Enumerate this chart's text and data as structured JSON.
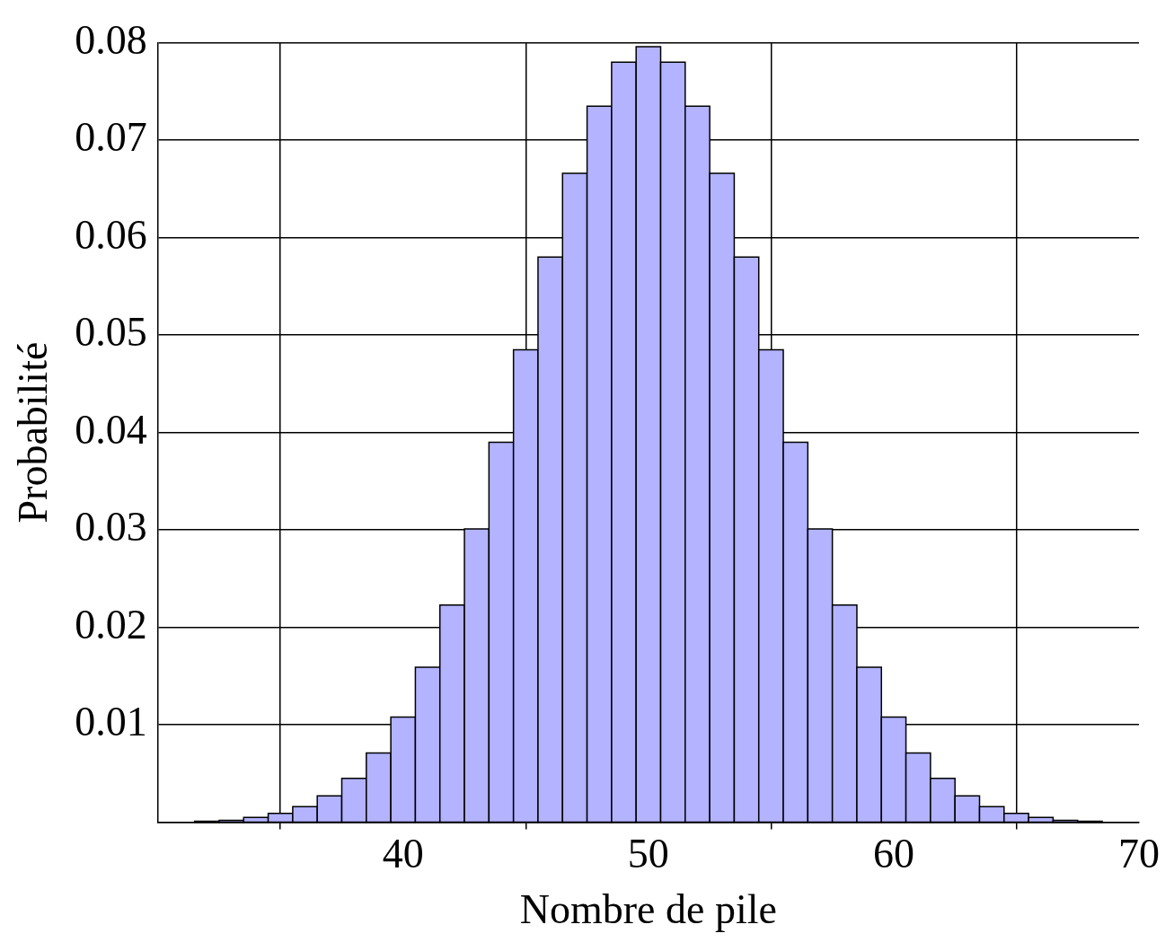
{
  "chart_data": {
    "type": "histogram",
    "xlabel": "Nombre de pile",
    "ylabel": "Probabilité",
    "bins": [
      31.5,
      32.5,
      33.5,
      34.5,
      35.5,
      36.5,
      37.5,
      38.5,
      39.5,
      40.5,
      41.5,
      42.5,
      43.5,
      44.5,
      45.5,
      46.5,
      47.5,
      48.5,
      49.5,
      50.5,
      51.5,
      52.5,
      53.5,
      54.5,
      55.5,
      56.5,
      57.5,
      58.5,
      59.5,
      60.5,
      61.5,
      62.5,
      63.5,
      64.5,
      65.5,
      66.5,
      67.5,
      68.5
    ],
    "values": [
      0.0001,
      0.0002,
      0.0005,
      0.0009,
      0.0016,
      0.0027,
      0.0045,
      0.0071,
      0.0108,
      0.0159,
      0.0223,
      0.0301,
      0.039,
      0.0485,
      0.058,
      0.0666,
      0.0735,
      0.078,
      0.0796,
      0.078,
      0.0735,
      0.0666,
      0.058,
      0.0485,
      0.039,
      0.0301,
      0.0223,
      0.0159,
      0.0108,
      0.0071,
      0.0045,
      0.0027,
      0.0016,
      0.0009,
      0.0005,
      0.0002,
      0.0001
    ],
    "color": "#b3b3ff",
    "xlim": [
      30,
      70
    ],
    "xticks": [
      40,
      50,
      60,
      70
    ],
    "ylim": [
      0,
      0.08
    ],
    "yticks": [
      {
        "value": 0,
        "label": null
      },
      0.01,
      0.02,
      0.03,
      0.04,
      0.05,
      0.06,
      0.07,
      0.08
    ],
    "grid": true,
    "legend": false
  }
}
